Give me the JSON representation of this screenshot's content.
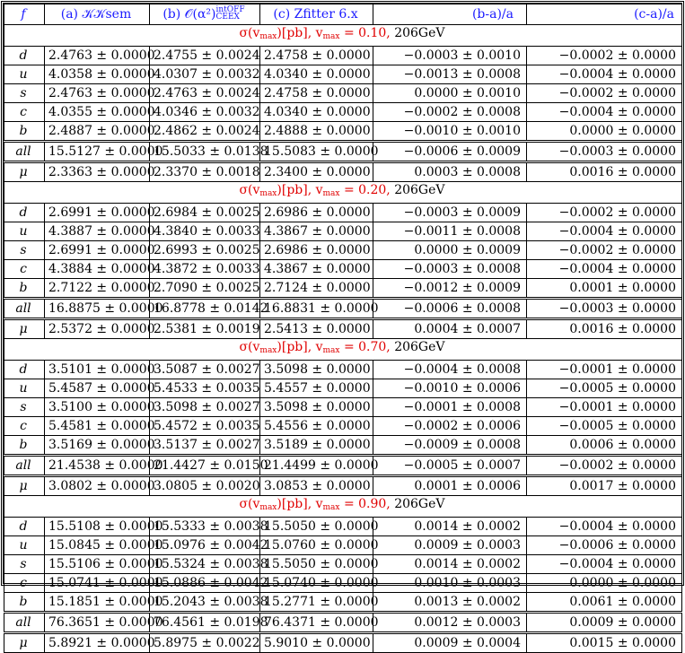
{
  "headers": {
    "f": "f",
    "a": "(a) 𝒦𝒦sem",
    "b_main": "(b) 𝒪(α²)",
    "b_sup": "intOFF",
    "b_sub": "CEEX",
    "c": "(c) Zfitter 6.x",
    "ba": "(b-a)/a",
    "ca": "(c-a)/a"
  },
  "sections": [
    {
      "title": "σ(v",
      "title_sub": "max",
      "title_rest": ")[pb], v",
      "title_sub2": "max",
      "title_eq": " = 0.10, ",
      "title_energy": "206GeV",
      "rows": [
        {
          "f": "d",
          "a": "2.4763 ± 0.0000",
          "b": "2.4755 ± 0.0024",
          "c": "2.4758 ± 0.0000",
          "ba": "−0.0003 ± 0.0010",
          "ca": "−0.0002 ± 0.0000"
        },
        {
          "f": "u",
          "a": "4.0358 ± 0.0000",
          "b": "4.0307 ± 0.0032",
          "c": "4.0340 ± 0.0000",
          "ba": "−0.0013 ± 0.0008",
          "ca": "−0.0004 ± 0.0000"
        },
        {
          "f": "s",
          "a": "2.4763 ± 0.0000",
          "b": "2.4763 ± 0.0024",
          "c": "2.4758 ± 0.0000",
          "ba": "0.0000 ± 0.0010",
          "ca": "−0.0002 ± 0.0000"
        },
        {
          "f": "c",
          "a": "4.0355 ± 0.0000",
          "b": "4.0346 ± 0.0032",
          "c": "4.0340 ± 0.0000",
          "ba": "−0.0002 ± 0.0008",
          "ca": "−0.0004 ± 0.0000"
        },
        {
          "f": "b",
          "a": "2.4887 ± 0.0000",
          "b": "2.4862 ± 0.0024",
          "c": "2.4888 ± 0.0000",
          "ba": "−0.0010 ± 0.0010",
          "ca": "0.0000 ± 0.0000"
        }
      ],
      "all": {
        "f": "all",
        "a": "15.5127 ± 0.0000",
        "b": "15.5033 ± 0.0138",
        "c": "15.5083 ± 0.0000",
        "ba": "−0.0006 ± 0.0009",
        "ca": "−0.0003 ± 0.0000"
      },
      "mu": {
        "f": "μ",
        "a": "2.3363 ± 0.0000",
        "b": "2.3370 ± 0.0018",
        "c": "2.3400 ± 0.0000",
        "ba": "0.0003 ± 0.0008",
        "ca": "0.0016 ± 0.0000"
      }
    },
    {
      "title": "σ(v",
      "title_sub": "max",
      "title_rest": ")[pb], v",
      "title_sub2": "max",
      "title_eq": " = 0.20, ",
      "title_energy": "206GeV",
      "rows": [
        {
          "f": "d",
          "a": "2.6991 ± 0.0000",
          "b": "2.6984 ± 0.0025",
          "c": "2.6986 ± 0.0000",
          "ba": "−0.0003 ± 0.0009",
          "ca": "−0.0002 ± 0.0000"
        },
        {
          "f": "u",
          "a": "4.3887 ± 0.0000",
          "b": "4.3840 ± 0.0033",
          "c": "4.3867 ± 0.0000",
          "ba": "−0.0011 ± 0.0008",
          "ca": "−0.0004 ± 0.0000"
        },
        {
          "f": "s",
          "a": "2.6991 ± 0.0000",
          "b": "2.6993 ± 0.0025",
          "c": "2.6986 ± 0.0000",
          "ba": "0.0000 ± 0.0009",
          "ca": "−0.0002 ± 0.0000"
        },
        {
          "f": "c",
          "a": "4.3884 ± 0.0000",
          "b": "4.3872 ± 0.0033",
          "c": "4.3867 ± 0.0000",
          "ba": "−0.0003 ± 0.0008",
          "ca": "−0.0004 ± 0.0000"
        },
        {
          "f": "b",
          "a": "2.7122 ± 0.0000",
          "b": "2.7090 ± 0.0025",
          "c": "2.7124 ± 0.0000",
          "ba": "−0.0012 ± 0.0009",
          "ca": "0.0001 ± 0.0000"
        }
      ],
      "all": {
        "f": "all",
        "a": "16.8875 ± 0.0000",
        "b": "16.8778 ± 0.0142",
        "c": "16.8831 ± 0.0000",
        "ba": "−0.0006 ± 0.0008",
        "ca": "−0.0003 ± 0.0000"
      },
      "mu": {
        "f": "μ",
        "a": "2.5372 ± 0.0000",
        "b": "2.5381 ± 0.0019",
        "c": "2.5413 ± 0.0000",
        "ba": "0.0004 ± 0.0007",
        "ca": "0.0016 ± 0.0000"
      }
    },
    {
      "title": "σ(v",
      "title_sub": "max",
      "title_rest": ")[pb], v",
      "title_sub2": "max",
      "title_eq": " = 0.70, ",
      "title_energy": "206GeV",
      "rows": [
        {
          "f": "d",
          "a": "3.5101 ± 0.0000",
          "b": "3.5087 ± 0.0027",
          "c": "3.5098 ± 0.0000",
          "ba": "−0.0004 ± 0.0008",
          "ca": "−0.0001 ± 0.0000"
        },
        {
          "f": "u",
          "a": "5.4587 ± 0.0000",
          "b": "5.4533 ± 0.0035",
          "c": "5.4557 ± 0.0000",
          "ba": "−0.0010 ± 0.0006",
          "ca": "−0.0005 ± 0.0000"
        },
        {
          "f": "s",
          "a": "3.5100 ± 0.0000",
          "b": "3.5098 ± 0.0027",
          "c": "3.5098 ± 0.0000",
          "ba": "−0.0001 ± 0.0008",
          "ca": "−0.0001 ± 0.0000"
        },
        {
          "f": "c",
          "a": "5.4581 ± 0.0000",
          "b": "5.4572 ± 0.0035",
          "c": "5.4556 ± 0.0000",
          "ba": "−0.0002 ± 0.0006",
          "ca": "−0.0005 ± 0.0000"
        },
        {
          "f": "b",
          "a": "3.5169 ± 0.0000",
          "b": "3.5137 ± 0.0027",
          "c": "3.5189 ± 0.0000",
          "ba": "−0.0009 ± 0.0008",
          "ca": "0.0006 ± 0.0000"
        }
      ],
      "all": {
        "f": "all",
        "a": "21.4538 ± 0.0000",
        "b": "21.4427 ± 0.0150",
        "c": "21.4499 ± 0.0000",
        "ba": "−0.0005 ± 0.0007",
        "ca": "−0.0002 ± 0.0000"
      },
      "mu": {
        "f": "μ",
        "a": "3.0802 ± 0.0000",
        "b": "3.0805 ± 0.0020",
        "c": "3.0853 ± 0.0000",
        "ba": "0.0001 ± 0.0006",
        "ca": "0.0017 ± 0.0000"
      }
    },
    {
      "title": "σ(v",
      "title_sub": "max",
      "title_rest": ")[pb], v",
      "title_sub2": "max",
      "title_eq": " = 0.90, ",
      "title_energy": "206GeV",
      "rows": [
        {
          "f": "d",
          "a": "15.5108 ± 0.0000",
          "b": "15.5333 ± 0.0038",
          "c": "15.5050 ± 0.0000",
          "ba": "0.0014 ± 0.0002",
          "ca": "−0.0004 ± 0.0000"
        },
        {
          "f": "u",
          "a": "15.0845 ± 0.0000",
          "b": "15.0976 ± 0.0042",
          "c": "15.0760 ± 0.0000",
          "ba": "0.0009 ± 0.0003",
          "ca": "−0.0006 ± 0.0000"
        },
        {
          "f": "s",
          "a": "15.5106 ± 0.0000",
          "b": "15.5324 ± 0.0038",
          "c": "15.5050 ± 0.0000",
          "ba": "0.0014 ± 0.0002",
          "ca": "−0.0004 ± 0.0000"
        },
        {
          "f": "c",
          "a": "15.0741 ± 0.0000",
          "b": "15.0886 ± 0.0042",
          "c": "15.0740 ± 0.0000",
          "ba": "0.0010 ± 0.0003",
          "ca": "0.0000 ± 0.0000"
        },
        {
          "f": "b",
          "a": "15.1851 ± 0.0000",
          "b": "15.2043 ± 0.0038",
          "c": "15.2771 ± 0.0000",
          "ba": "0.0013 ± 0.0002",
          "ca": "0.0061 ± 0.0000"
        }
      ],
      "all": {
        "f": "all",
        "a": "76.3651 ± 0.0000",
        "b": "76.4561 ± 0.0198",
        "c": "76.4371 ± 0.0000",
        "ba": "0.0012 ± 0.0003",
        "ca": "0.0009 ± 0.0000"
      },
      "mu": {
        "f": "μ",
        "a": "5.8921 ± 0.0000",
        "b": "5.8975 ± 0.0022",
        "c": "5.9010 ± 0.0000",
        "ba": "0.0009 ± 0.0004",
        "ca": "0.0015 ± 0.0000"
      }
    }
  ]
}
